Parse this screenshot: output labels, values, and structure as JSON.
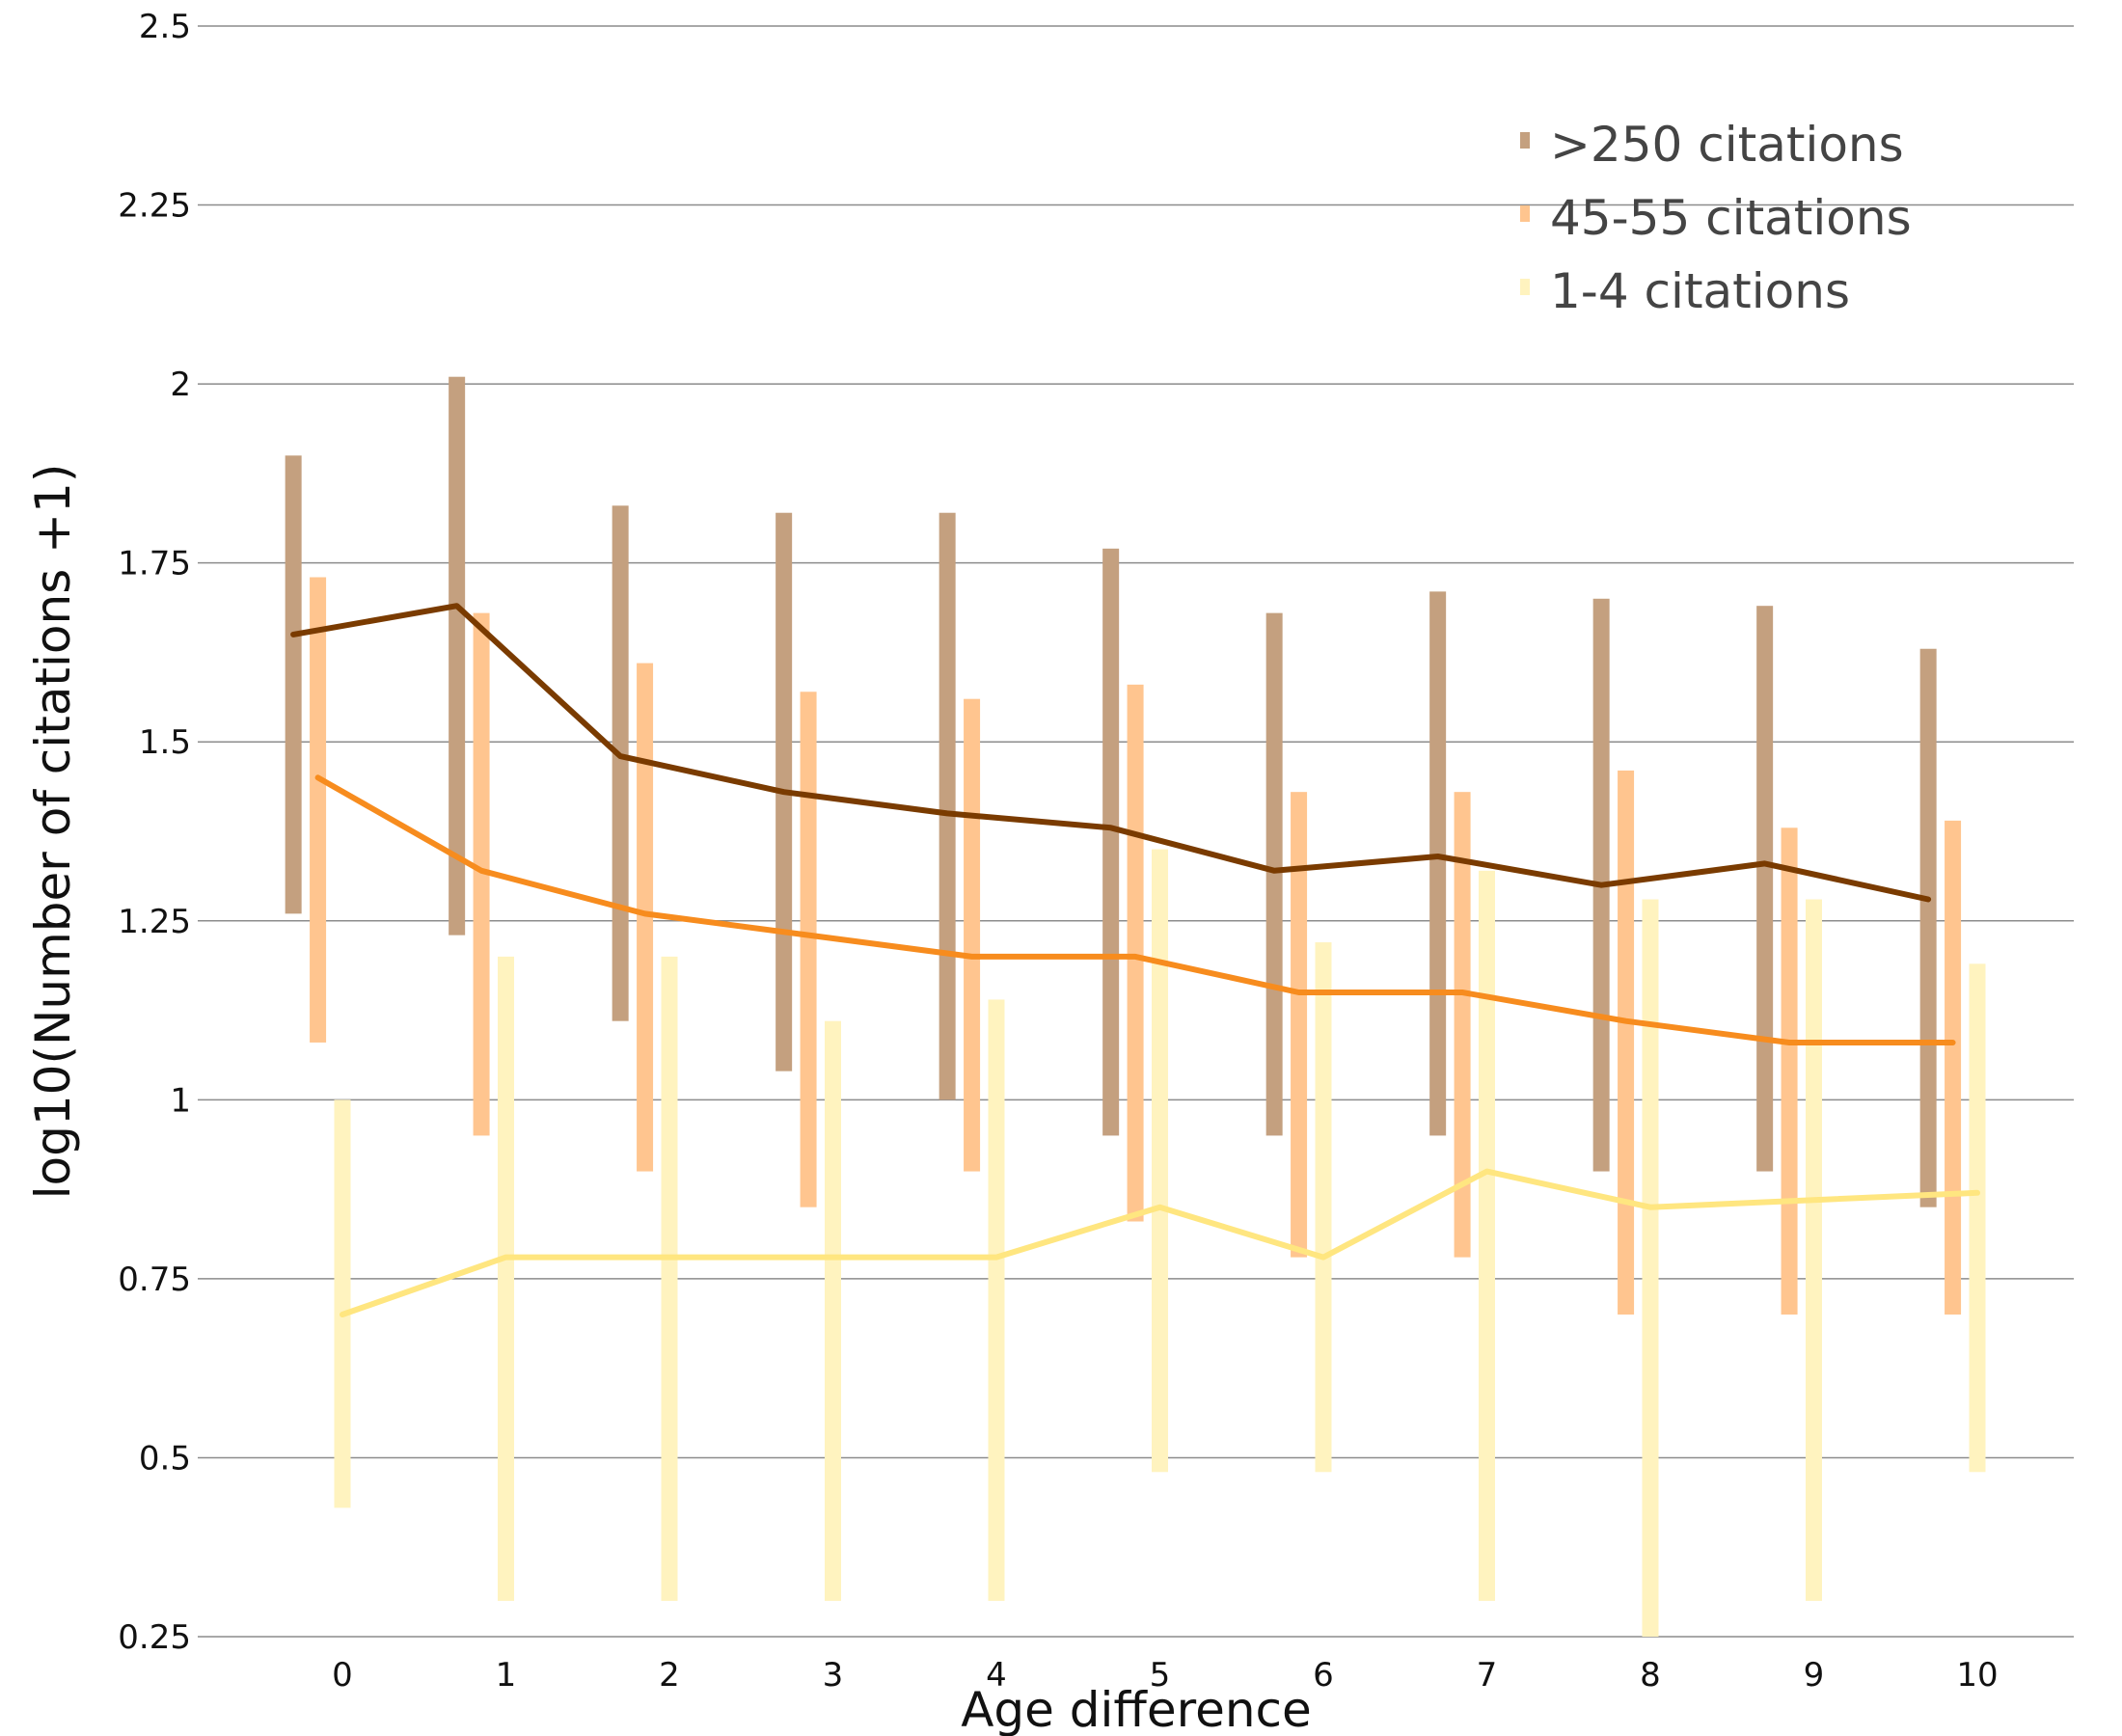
{
  "chart_data": {
    "type": "line",
    "title": "",
    "xlabel": "Age difference",
    "ylabel": "log10(Number of citations +1)",
    "x": [
      0,
      1,
      2,
      3,
      4,
      5,
      6,
      7,
      8,
      9,
      10
    ],
    "x_tick_labels": [
      "0",
      "1",
      "2",
      "3",
      "4",
      "5",
      "6",
      "7",
      "8",
      "9",
      "10"
    ],
    "y_ticks": [
      0.25,
      0.5,
      0.75,
      1,
      1.25,
      1.5,
      1.75,
      2,
      2.25,
      2.5
    ],
    "y_tick_labels": [
      "0.25",
      "0.5",
      "0.75",
      "1",
      "1.25",
      "1.5",
      "1.75",
      "2",
      "2.25",
      "2.5"
    ],
    "ylim": [
      0.25,
      2.5
    ],
    "xlim": [
      -0.8,
      10.8
    ],
    "grid": "horizontal",
    "legend_position": "top-right",
    "series": [
      {
        "name": ">250 citations",
        "line_color": "#7a3b00",
        "bar_color": "#c4a07f",
        "offset": -0.3,
        "values": [
          1.65,
          1.69,
          1.48,
          1.43,
          1.4,
          1.38,
          1.32,
          1.34,
          1.3,
          1.33,
          1.28
        ],
        "low": [
          1.26,
          1.23,
          1.11,
          1.04,
          1.0,
          0.95,
          0.95,
          0.95,
          0.9,
          0.9,
          0.85
        ],
        "high": [
          1.9,
          2.01,
          1.83,
          1.82,
          1.82,
          1.77,
          1.68,
          1.71,
          1.7,
          1.69,
          1.63
        ]
      },
      {
        "name": "45-55 citations",
        "line_color": "#f78c1e",
        "bar_color": "#ffc58f",
        "offset": -0.15,
        "values": [
          1.45,
          1.32,
          1.26,
          1.23,
          1.2,
          1.2,
          1.15,
          1.15,
          1.11,
          1.08,
          1.08
        ],
        "low": [
          1.08,
          0.95,
          0.9,
          0.85,
          0.9,
          0.83,
          0.78,
          0.78,
          0.7,
          0.7,
          0.7
        ],
        "high": [
          1.73,
          1.68,
          1.61,
          1.57,
          1.56,
          1.58,
          1.43,
          1.43,
          1.46,
          1.38,
          1.39
        ]
      },
      {
        "name": "1-4 citations",
        "line_color": "#ffe680",
        "bar_color": "#fff3bf",
        "offset": 0,
        "values": [
          0.7,
          0.78,
          0.78,
          0.78,
          0.78,
          0.85,
          0.78,
          0.9,
          0.85,
          0.86,
          0.87
        ],
        "low": [
          0.43,
          0.3,
          0.3,
          0.3,
          0.3,
          0.48,
          0.48,
          0.3,
          0.25,
          0.3,
          0.48
        ],
        "high": [
          1.0,
          1.2,
          1.2,
          1.11,
          1.14,
          1.35,
          1.22,
          1.32,
          1.28,
          1.28,
          1.19
        ]
      }
    ]
  }
}
